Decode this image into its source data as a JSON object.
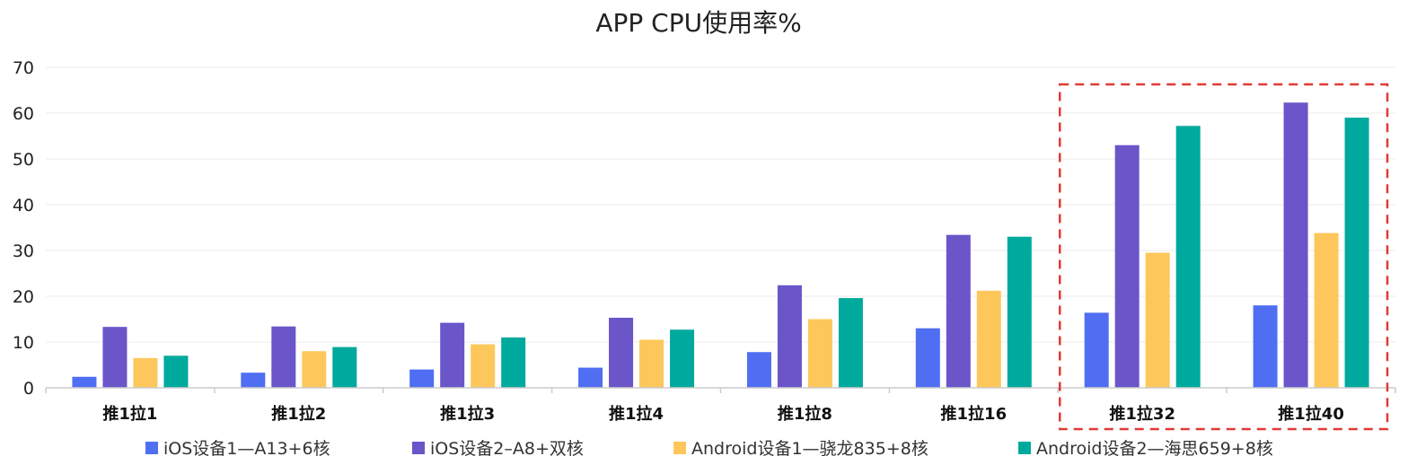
{
  "chart_data": {
    "type": "bar",
    "title": "APP CPU使用率%",
    "xlabel": "",
    "ylabel": "",
    "ylim": [
      0,
      70
    ],
    "yticks": [
      0,
      10,
      20,
      30,
      40,
      50,
      60,
      70
    ],
    "grid": true,
    "legend_position": "bottom",
    "categories": [
      "推1拉1",
      "推1拉2",
      "推1拉3",
      "推1拉4",
      "推1拉8",
      "推1拉16",
      "推1拉32",
      "推1拉40"
    ],
    "series": [
      {
        "name": "iOS设备1—A13+6核",
        "color": "#4f6ef2",
        "values": [
          2.4,
          3.3,
          4.0,
          4.4,
          7.8,
          13.0,
          16.4,
          18.0
        ]
      },
      {
        "name": "iOS设备2–A8+双核",
        "color": "#6a55c9",
        "values": [
          13.3,
          13.4,
          14.2,
          15.3,
          22.4,
          33.4,
          53.0,
          62.3
        ]
      },
      {
        "name": "Android设备1—骁龙835+8核",
        "color": "#fdc75b",
        "values": [
          6.5,
          8.0,
          9.5,
          10.5,
          15.0,
          21.2,
          29.5,
          33.8
        ]
      },
      {
        "name": "Android设备2—海思659+8核",
        "color": "#00a99d",
        "values": [
          7.0,
          8.9,
          11.0,
          12.7,
          19.6,
          33.0,
          57.2,
          59.0
        ]
      }
    ],
    "annotations": [
      {
        "type": "dashed-box",
        "color": "#e03a36",
        "covers_categories": [
          "推1拉32",
          "推1拉40"
        ]
      }
    ]
  }
}
